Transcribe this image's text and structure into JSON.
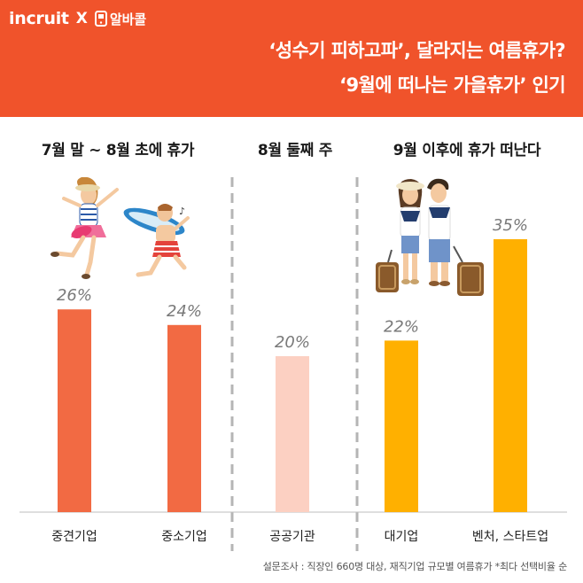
{
  "brand": {
    "incruit": "incruit",
    "x": "X",
    "albacall": "알바콜"
  },
  "headline": {
    "line1": "‘성수기 피하고파’, 달라지는 여름휴가?",
    "line2": "‘9월에 떠나는 가을휴가’ 인기"
  },
  "sections": [
    {
      "title": "7월 말 ~ 8월 초에 휴가"
    },
    {
      "title": "8월 둘째 주"
    },
    {
      "title": "9월 이후에 휴가 떠난다"
    }
  ],
  "chart_data": {
    "type": "bar",
    "categories": [
      "중견기업",
      "중소기업",
      "공공기관",
      "대기업",
      "벤처, 스타트업"
    ],
    "values": [
      26,
      24,
      20,
      22,
      35
    ],
    "value_labels": [
      "26%",
      "24%",
      "20%",
      "22%",
      "35%"
    ],
    "colors": [
      "#f26a43",
      "#f26a43",
      "#fcd0c2",
      "#ffb000",
      "#ffb000"
    ],
    "groups": [
      {
        "section": "7월 말 ~ 8월 초에 휴가",
        "categories": [
          "중견기업",
          "중소기업"
        ]
      },
      {
        "section": "8월 둘째 주",
        "categories": [
          "공공기관"
        ]
      },
      {
        "section": "9월 이후에 휴가 떠난다",
        "categories": [
          "대기업",
          "벤처, 스타트업"
        ]
      }
    ],
    "title": "",
    "xlabel": "",
    "ylabel": "",
    "ylim": [
      0,
      40
    ],
    "grid": false,
    "value_label_color": "#7a7a7a"
  },
  "footnote": "설문조사 : 직장인 660명 대상, 재직기업 규모별 여름휴가  *최다 선택비율 순",
  "colors": {
    "header": "#f0532b",
    "divider": "#b5b5b5",
    "baseline": "#bdbdbd"
  }
}
